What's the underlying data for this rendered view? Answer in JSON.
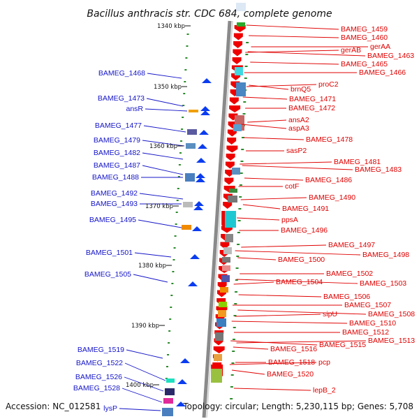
{
  "title": "Bacillus anthracis str. CDC 684, complete genome",
  "footer": {
    "accession": "Accession: NC_012581",
    "topology": "Topology: circular; Length: 5,230,115 bp; Genes: 5,708"
  },
  "colors": {
    "left_label": "#1414c8",
    "right_label": "#e00000",
    "backbone": "#8a8a8a",
    "tick": "#2a8a2a"
  },
  "kbp_ticks": [
    "1340 kbp",
    "1350 kbp",
    "1360 kbp",
    "1370 kbp",
    "1380 kbp",
    "1390 kbp",
    "1400 kbp"
  ],
  "left_genes": [
    "BAMEG_1468",
    "BAMEG_1473",
    "ansR",
    "BAMEG_1477",
    "BAMEG_1479",
    "BAMEG_1482",
    "BAMEG_1487",
    "BAMEG_1488",
    "BAMEG_1492",
    "BAMEG_1493",
    "BAMEG_1495",
    "BAMEG_1501",
    "BAMEG_1505",
    "BAMEG_1519",
    "BAMEG_1522",
    "BAMEG_1526",
    "BAMEG_1528",
    "lysP"
  ],
  "right_genes": [
    "BAMEG_1459",
    "BAMEG_1460",
    "gerAA",
    "gerAB",
    "BAMEG_1463",
    "BAMEG_1465",
    "BAMEG_1466",
    "proC2",
    "brnQ5",
    "BAMEG_1471",
    "BAMEG_1472",
    "ansA2",
    "aspA3",
    "BAMEG_1478",
    "sasP2",
    "BAMEG_1481",
    "BAMEG_1483",
    "BAMEG_1486",
    "cotF",
    "BAMEG_1490",
    "BAMEG_1491",
    "ppsA",
    "BAMEG_1496",
    "BAMEG_1497",
    "BAMEG_1498",
    "BAMEG_1500",
    "BAMEG_1502",
    "BAMEG_1504",
    "BAMEG_1503",
    "BAMEG_1506",
    "BAMEG_1507",
    "sipU",
    "BAMEG_1508",
    "BAMEG_1510",
    "BAMEG_1512",
    "BAMEG_1513",
    "BAMEG_1515",
    "BAMEG_1516",
    "BAMEG_1518",
    "pcp",
    "BAMEG_1520",
    "lepB_2"
  ]
}
